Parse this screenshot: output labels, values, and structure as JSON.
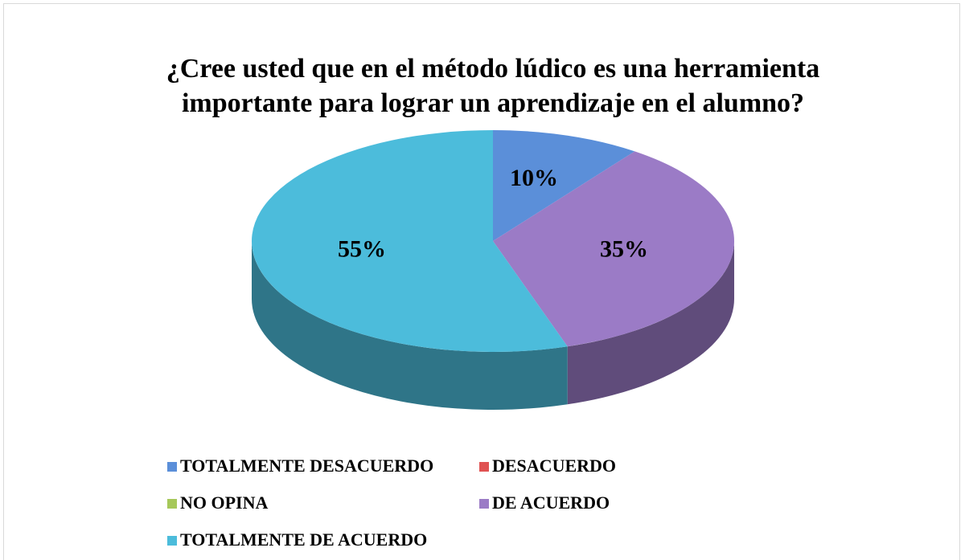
{
  "chart_data": {
    "type": "pie",
    "title": "¿Cree usted que en el método lúdico es una herramienta importante para lograr un aprendizaje en el alumno?",
    "categories": [
      "TOTALMENTE DESACUERDO",
      "DESACUERDO",
      "NO OPINA",
      "DE ACUERDO",
      "TOTALMENTE DE ACUERDO"
    ],
    "values": [
      10,
      0,
      0,
      35,
      55
    ],
    "value_labels": [
      "10%",
      null,
      null,
      "35%",
      "55%"
    ],
    "colors": [
      "#5b8fd9",
      "#e05252",
      "#a6c85a",
      "#9b7bc6",
      "#4cbcdb"
    ],
    "legend": "bottom"
  }
}
